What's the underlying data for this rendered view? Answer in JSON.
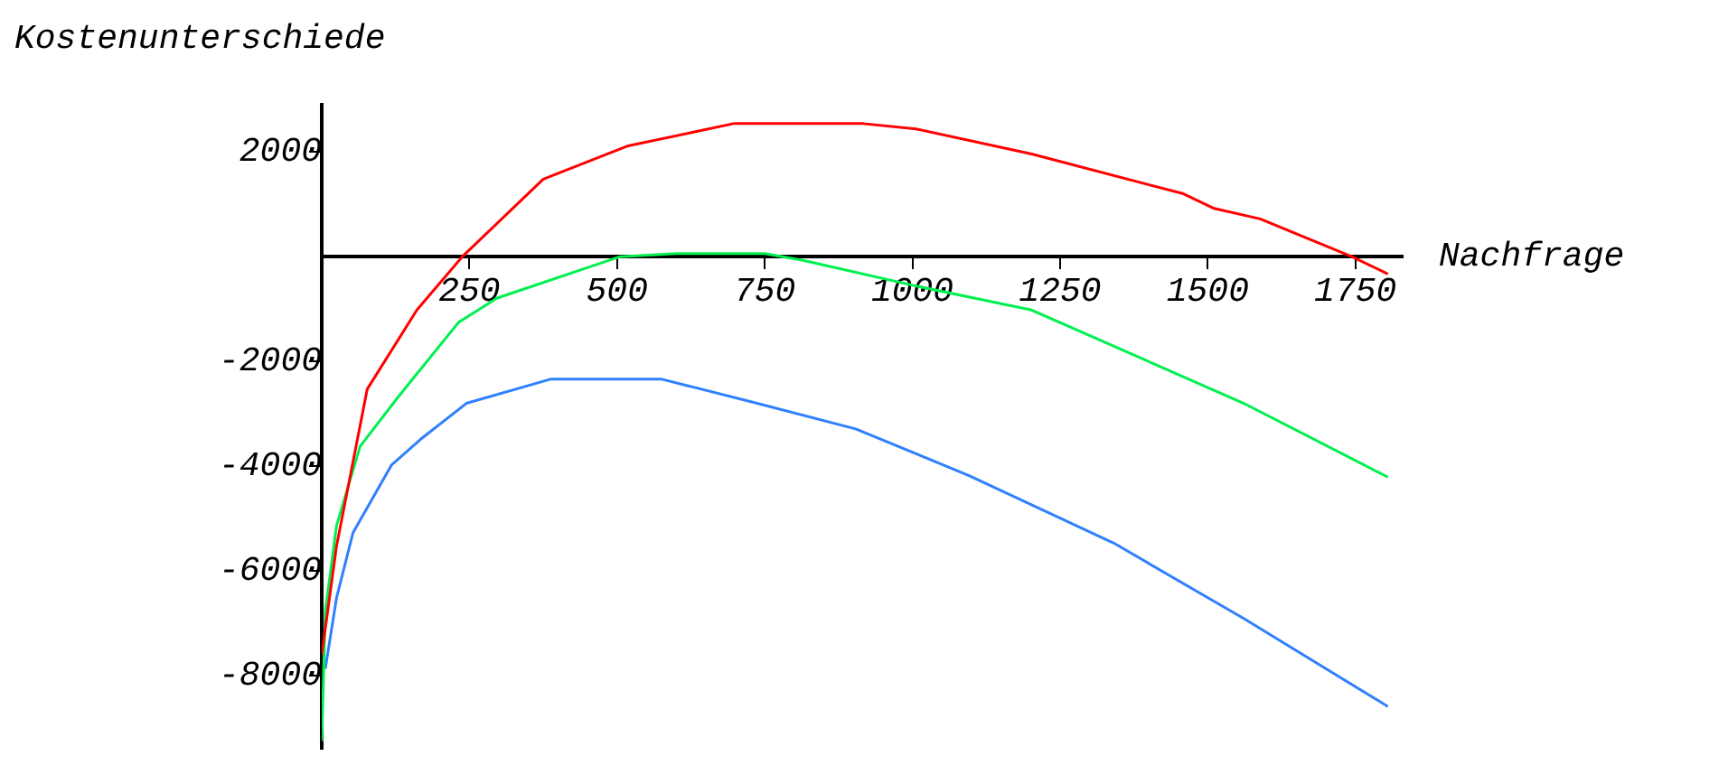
{
  "chart_data": {
    "type": "line",
    "ylabel": "Kostenunterschiede",
    "xlabel": "Nachfrage",
    "xlim": [
      0,
      1830
    ],
    "ylim": [
      -9400,
      2900
    ],
    "xticks": [
      250,
      500,
      750,
      1000,
      1250,
      1500,
      1750
    ],
    "yticks": [
      -8000,
      -6000,
      -4000,
      -2000,
      2000
    ],
    "grid": false,
    "legend": false,
    "marker": "none",
    "line_style": "solid",
    "series": [
      {
        "color": "#ff0000",
        "x": [
          0,
          25,
          77,
          161,
          238,
          375,
          517,
          697,
          917,
          1006,
          1202,
          1459,
          1511,
          1589,
          1744,
          1805
        ],
        "values": [
          -7600,
          -5530,
          -2530,
          -1020,
          0,
          1480,
          2110,
          2540,
          2540,
          2440,
          1960,
          1200,
          920,
          720,
          0,
          -330
        ]
      },
      {
        "color": "#00f050",
        "x": [
          0,
          6,
          25,
          65,
          130,
          232,
          297,
          505,
          600,
          750,
          815,
          1006,
          1202,
          1561,
          1805
        ],
        "values": [
          -9250,
          -6780,
          -5140,
          -3620,
          -2670,
          -1250,
          -790,
          0,
          60,
          60,
          -70,
          -560,
          -1020,
          -2800,
          -4210
        ]
      },
      {
        "color": "#3080ff",
        "x": [
          6,
          25,
          53,
          118,
          167,
          245,
          387,
          576,
          737,
          904,
          1096,
          1341,
          1561,
          1805
        ],
        "values": [
          -7870,
          -6520,
          -5270,
          -3980,
          -3490,
          -2800,
          -2340,
          -2340,
          -2800,
          -3290,
          -4180,
          -5470,
          -6910,
          -8590
        ]
      }
    ]
  }
}
